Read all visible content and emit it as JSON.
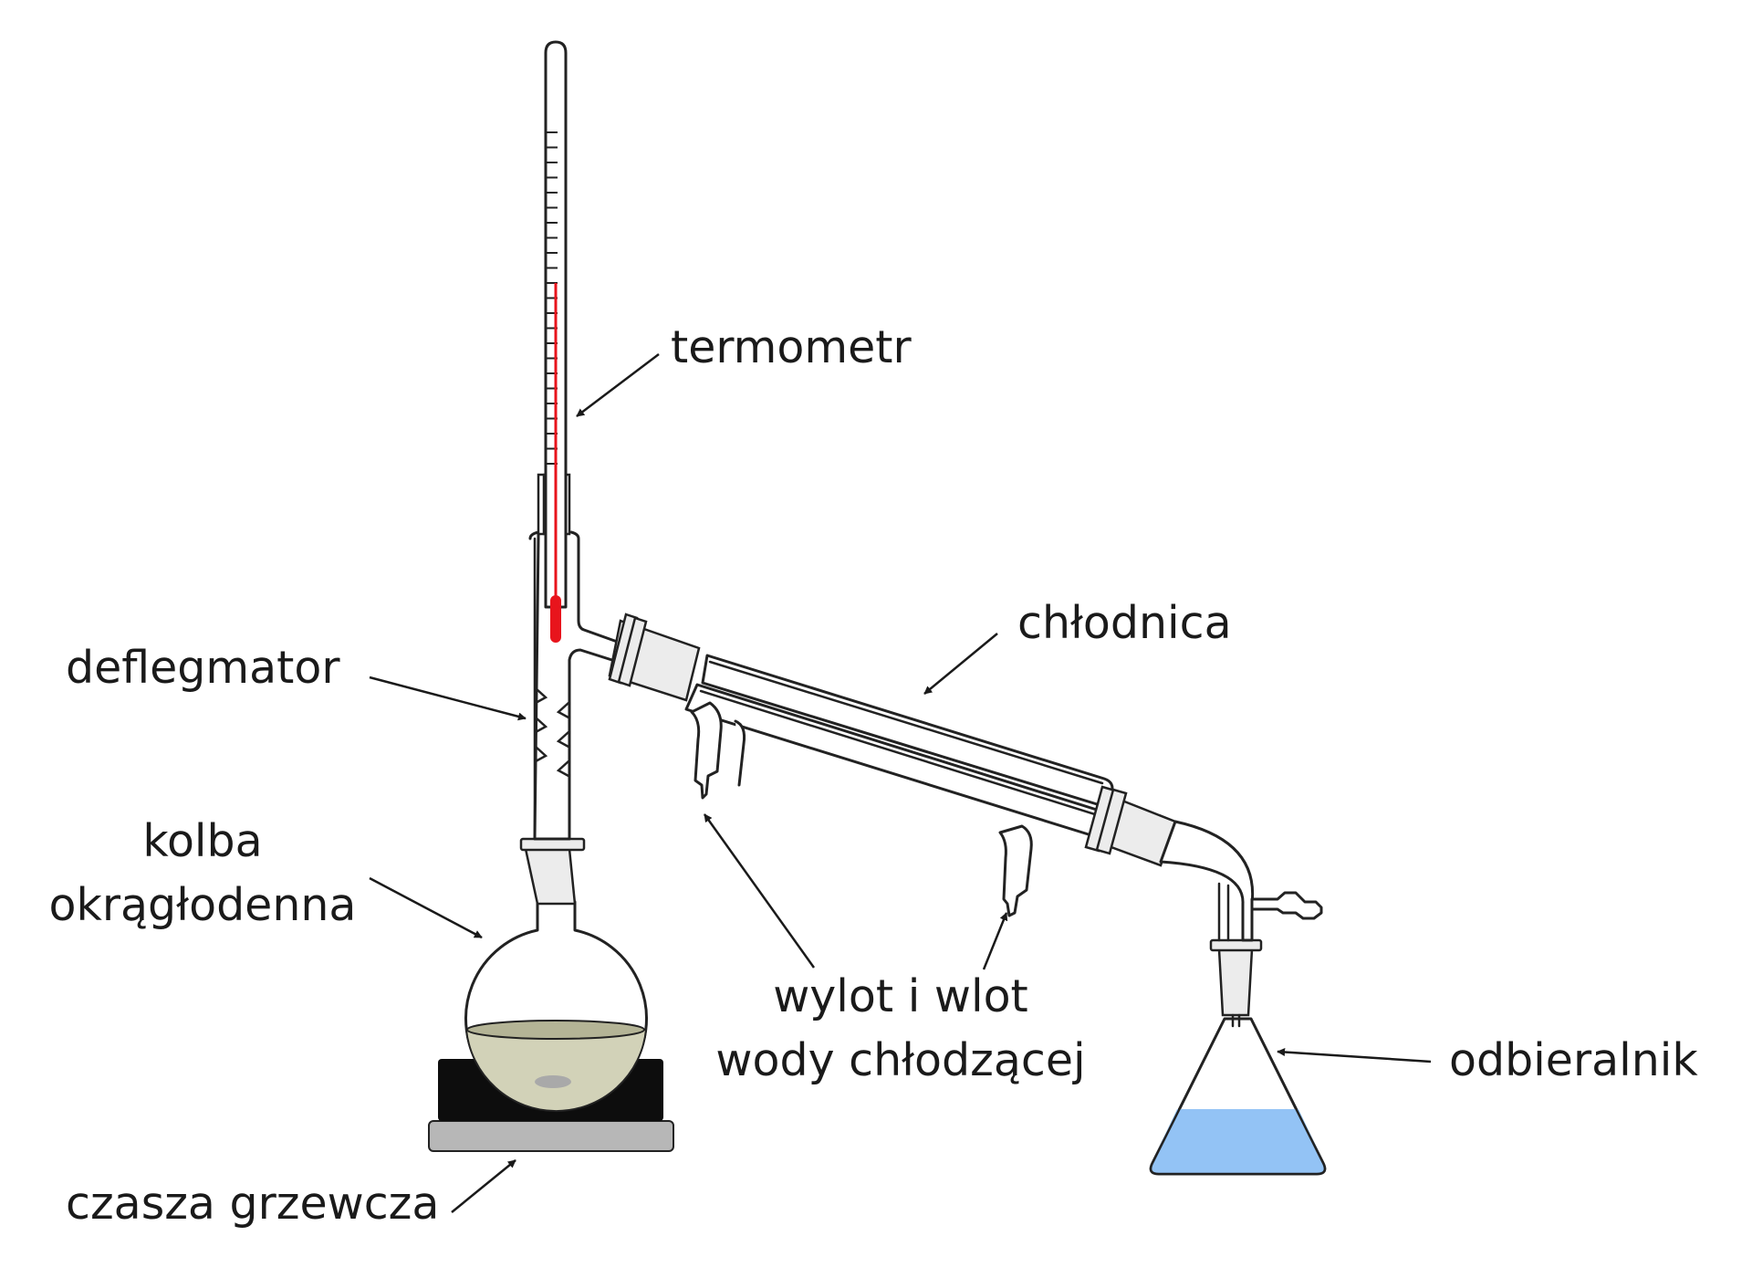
{
  "diagram": {
    "labels": {
      "thermometer": "termometr",
      "condenser": "chłodnica",
      "fractionating_column": "deflegmator",
      "flask_line1": "kolba",
      "flask_line2": "okrągłodenna",
      "coolant_line1": "wylot i wlot",
      "coolant_line2": "wody chłodzącej",
      "receiver": "odbieralnik",
      "heating_mantle": "czasza grzewcza"
    },
    "colors": {
      "thermometer_liquid": "#e8141c",
      "flask_liquid": "#d2d2b8",
      "flask_liquid_surface": "#b4b496",
      "receiver_liquid": "#93c3f5",
      "heater_top": "#0d0d0d",
      "heater_base": "#b7b7b7",
      "joint_sleeve": "#ececec"
    }
  }
}
